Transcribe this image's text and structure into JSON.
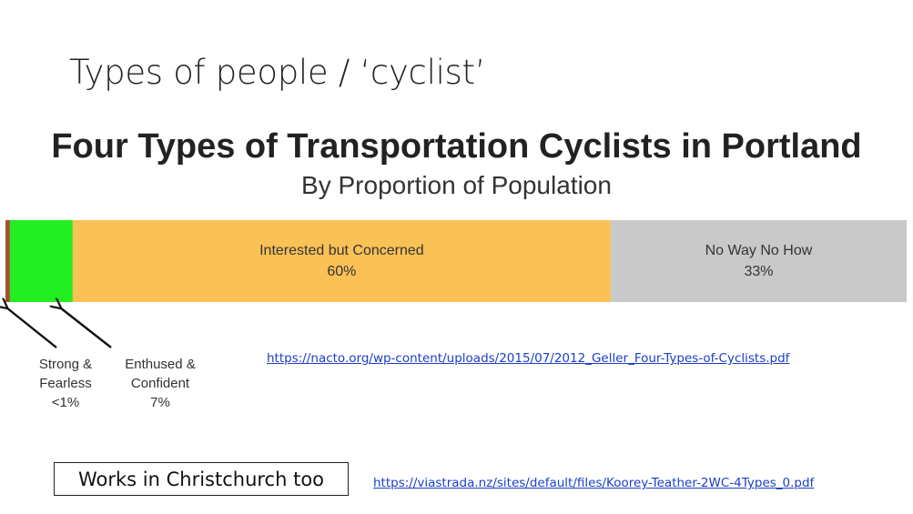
{
  "slide": {
    "title": "Types of people / ‘cyclist’",
    "callout": "Works in Christchurch too",
    "links": {
      "nacto": "https://nacto.org/wp-content/uploads/2015/07/2012_Geller_Four-Types-of-Cyclists.pdf",
      "viastrada": "https://viastrada.nz/sites/default/files/Koorey-Teather-2WC-4Types_0.pdf"
    }
  },
  "chart_data": {
    "type": "bar",
    "orientation": "horizontal-stacked-100",
    "title": "Four Types of Transportation Cyclists in Portland",
    "subtitle": "By Proportion of Population",
    "segments": [
      {
        "label_lines": [
          "Strong &",
          "Fearless",
          "<1%"
        ],
        "value": 0.5,
        "color": "#a0522d",
        "label_position": "below-arrow"
      },
      {
        "label_lines": [
          "Enthused &",
          "Confident",
          "7%"
        ],
        "value": 7,
        "color": "#22ee22",
        "label_position": "below-arrow"
      },
      {
        "label_lines": [
          "Interested but Concerned",
          "60%"
        ],
        "value": 60,
        "color": "#f9c156",
        "label_position": "inside"
      },
      {
        "label_lines": [
          "No Way No How",
          "33%"
        ],
        "value": 33,
        "color": "#c9c9c9",
        "label_position": "inside"
      }
    ]
  }
}
